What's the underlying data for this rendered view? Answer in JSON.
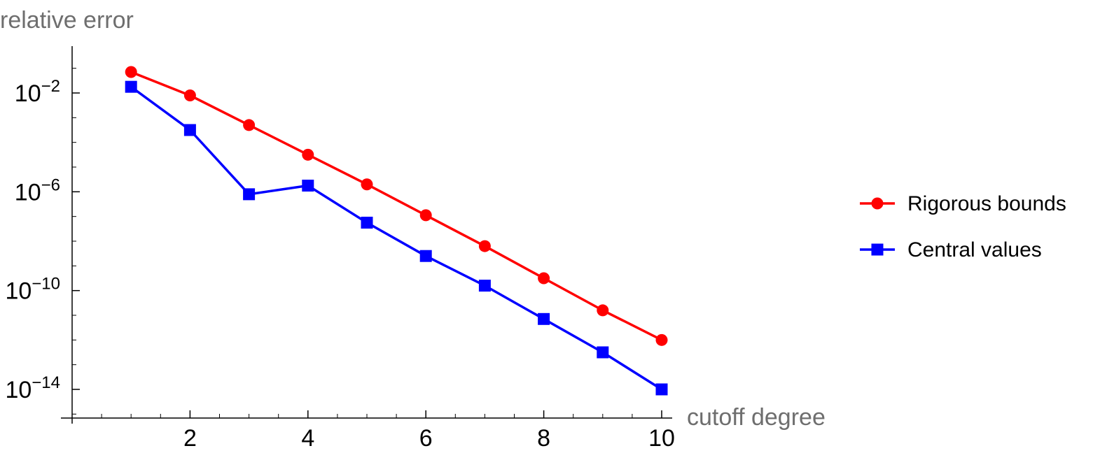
{
  "chart_data": {
    "type": "line",
    "title": "",
    "xlabel": "cutoff degree",
    "ylabel": "relative error",
    "y_scale": "log",
    "xlim": [
      0,
      10.2
    ],
    "ylim_exponent": [
      -15,
      -0.3
    ],
    "x_ticks": [
      {
        "value": 2,
        "label": "2"
      },
      {
        "value": 4,
        "label": "4"
      },
      {
        "value": 6,
        "label": "6"
      },
      {
        "value": 8,
        "label": "8"
      },
      {
        "value": 10,
        "label": "10"
      }
    ],
    "y_ticks": [
      {
        "exponent": -2,
        "base": "10",
        "sup": "−2"
      },
      {
        "exponent": -6,
        "base": "10",
        "sup": "−6"
      },
      {
        "exponent": -10,
        "base": "10",
        "sup": "−10"
      },
      {
        "exponent": -14,
        "base": "10",
        "sup": "−14"
      }
    ],
    "grid": false,
    "legend_position": "right",
    "series": [
      {
        "name": "Rigorous bounds",
        "color": "#ff0000",
        "marker": "circle",
        "x": [
          1,
          2,
          3,
          4,
          5,
          6,
          7,
          8,
          9,
          10
        ],
        "y_exponent": [
          -1.15,
          -2.1,
          -3.3,
          -4.5,
          -5.7,
          -6.95,
          -8.2,
          -9.5,
          -10.8,
          -12.0
        ]
      },
      {
        "name": "Central values",
        "color": "#0000ff",
        "marker": "square",
        "x": [
          1,
          2,
          3,
          4,
          5,
          6,
          7,
          8,
          9,
          10
        ],
        "y_exponent": [
          -1.75,
          -3.5,
          -6.1,
          -5.75,
          -7.25,
          -8.6,
          -9.8,
          -11.15,
          -12.5,
          -14.0
        ]
      }
    ]
  }
}
